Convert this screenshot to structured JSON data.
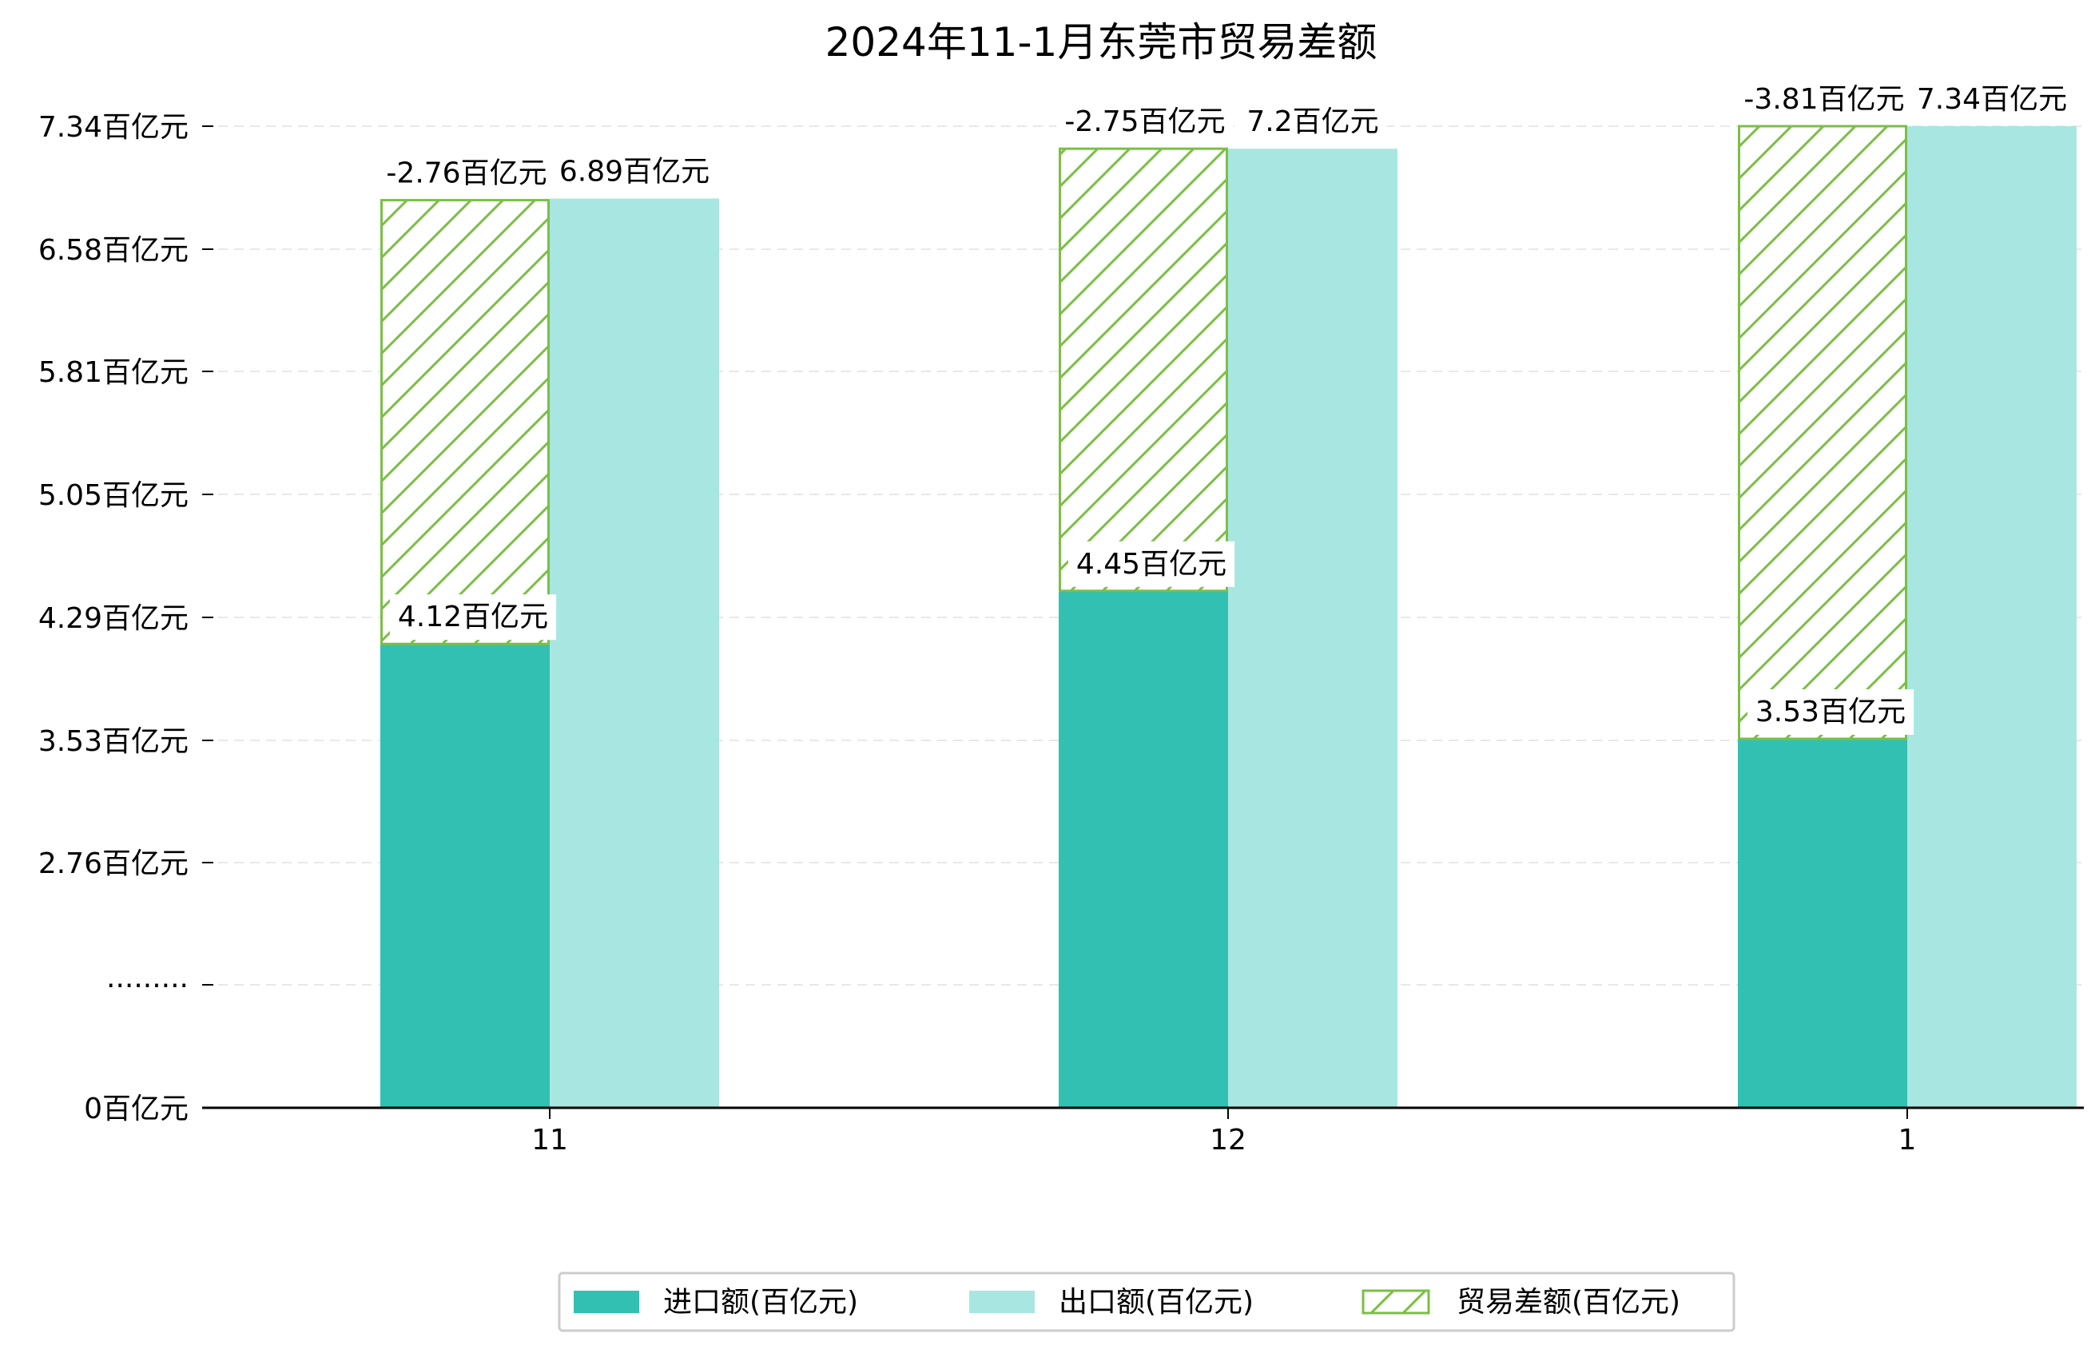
{
  "chart_data": {
    "type": "bar",
    "title": "2024年11-1月东莞市贸易差额",
    "categories": [
      "11",
      "12",
      "1"
    ],
    "y_tick_labels": [
      "0百亿元",
      "·········",
      "2.76百亿元",
      "3.53百亿元",
      "4.29百亿元",
      "5.05百亿元",
      "5.81百亿元",
      "6.58百亿元",
      "7.34百亿元"
    ],
    "axis_break": true,
    "grid": "horizontal dashed",
    "legend_position": "bottom-center",
    "series": [
      {
        "name": "进口额(百亿元)",
        "values": [
          4.12,
          4.45,
          3.53
        ],
        "labels": [
          "4.12百亿元",
          "4.45百亿元",
          "3.53百亿元"
        ],
        "color": "#32c0b3"
      },
      {
        "name": "出口额(百亿元)",
        "values": [
          6.89,
          7.2,
          7.34
        ],
        "labels": [
          "6.89百亿元",
          "7.2百亿元",
          "7.34百亿元"
        ],
        "color": "#a8e7e1"
      },
      {
        "name": "贸易差额(百亿元)",
        "values": [
          -2.76,
          -2.75,
          -3.81
        ],
        "labels": [
          "-2.76百亿元",
          "-2.75百亿元",
          "-3.81百亿元"
        ],
        "color": "#7bbf45",
        "pattern": "hatch"
      }
    ]
  }
}
